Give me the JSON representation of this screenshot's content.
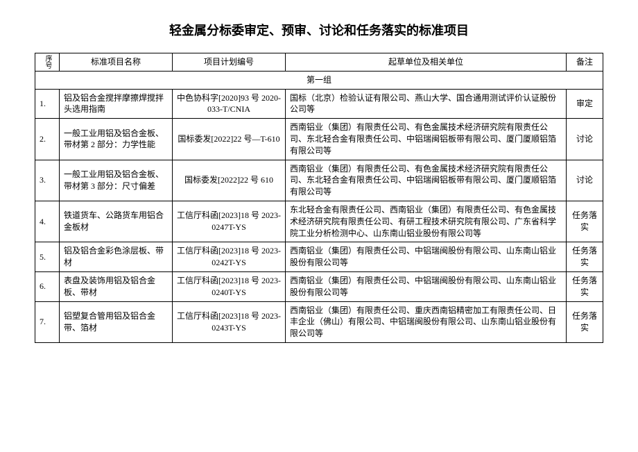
{
  "title": "轻金属分标委审定、预审、讨论和任务落实的标准项目",
  "headers": {
    "seq": "序号",
    "name": "标准项目名称",
    "plan": "项目计划编号",
    "units": "起草单位及相关单位",
    "note": "备注"
  },
  "group_label": "第一组",
  "rows": [
    {
      "seq": "1.",
      "name": "铝及铝合金搅拌摩擦焊搅拌头选用指南",
      "plan": "中色协科字[2020]93 号 2020-033-T/CNIA",
      "units": "国标（北京）检验认证有限公司、燕山大学、国合通用测试评价认证股份公司等",
      "note": "审定"
    },
    {
      "seq": "2.",
      "name": "一般工业用铝及铝合金板、带材第 2 部分：力学性能",
      "plan": "国标委发[2022]22 号—T-610",
      "units": "西南铝业（集团）有限责任公司、有色金属技术经济研究院有限责任公司、东北轻合金有限责任公司、中铝瑞闽铝板带有限公司、厦门厦顺铝箔有限公司等",
      "note": "讨论"
    },
    {
      "seq": "3.",
      "name": "一般工业用铝及铝合金板、带材第 3 部分：尺寸偏差",
      "plan": "国标委发[2022]22 号 610",
      "units": "西南铝业（集团）有限责任公司、有色金属技术经济研究院有限责任公司、东北轻合金有限责任公司、中铝瑞闽铝板带有限公司、厦门厦顺铝箔有限公司等",
      "note": "讨论"
    },
    {
      "seq": "4.",
      "name": "铁道货车、公路货车用铝合金板材",
      "plan": "工信厅科函[2023]18 号 2023-0247T-YS",
      "units": "东北轻合金有限责任公司、西南铝业（集团）有限责任公司、有色金属技术经济研究院有限责任公司、有研工程技术研究院有限公司、广东省科学院工业分析检测中心、山东南山铝业股份有限公司等",
      "note": "任务落实"
    },
    {
      "seq": "5.",
      "name": "铝及铝合金彩色涂层板、带材",
      "plan": "工信厅科函[2023]18 号 2023-0242T-YS",
      "units": "西南铝业（集团）有限责任公司、中铝瑞闽股份有限公司、山东南山铝业股份有限公司等",
      "note": "任务落实"
    },
    {
      "seq": "6.",
      "name": "表盘及装饰用铝及铝合金板、带材",
      "plan": "工信厅科函[2023]18 号 2023-0240T-YS",
      "units": "西南铝业（集团）有限责任公司、中铝瑞闽股份有限公司、山东南山铝业股份有限公司等",
      "note": "任务落实"
    },
    {
      "seq": "7.",
      "name": "铝塑复合管用铝及铝合金带、箔材",
      "plan": "工信厅科函[2023]18 号 2023-0243T-YS",
      "units": "西南铝业（集团）有限责任公司、重庆西南铝精密加工有限责任公司、日丰企业（佛山）有限公司、中铝瑞闽股份有限公司、山东南山铝业股份有限公司等",
      "note": "任务落实"
    }
  ]
}
